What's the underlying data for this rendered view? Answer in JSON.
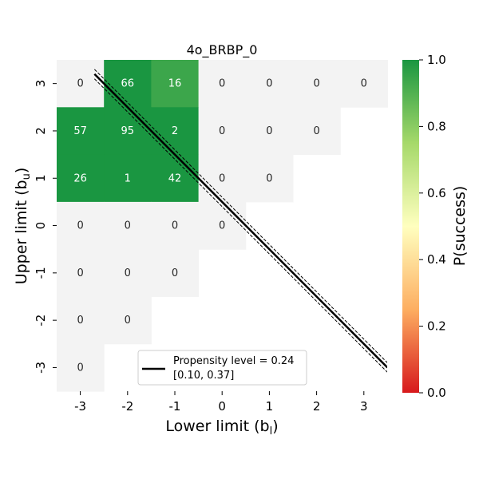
{
  "chart_data": {
    "type": "heatmap",
    "title": "4o_BRBP_0",
    "xlabel": "Lower limit (b",
    "xlabel_sub": "l",
    "ylabel": "Upper limit (b",
    "ylabel_sub": "u",
    "x_categories": [
      "-3",
      "-2",
      "-1",
      "0",
      "1",
      "2",
      "3"
    ],
    "y_categories": [
      "3",
      "2",
      "1",
      "0",
      "-1",
      "-2",
      "-3"
    ],
    "cells": [
      {
        "x": "-3",
        "y": "3",
        "count": "0",
        "p": null
      },
      {
        "x": "-2",
        "y": "3",
        "count": "66",
        "p": 1.0
      },
      {
        "x": "-1",
        "y": "3",
        "count": "16",
        "p": 0.94
      },
      {
        "x": "0",
        "y": "3",
        "count": "0",
        "p": null
      },
      {
        "x": "1",
        "y": "3",
        "count": "0",
        "p": null
      },
      {
        "x": "2",
        "y": "3",
        "count": "0",
        "p": null
      },
      {
        "x": "3",
        "y": "3",
        "count": "0",
        "p": null
      },
      {
        "x": "-3",
        "y": "2",
        "count": "57",
        "p": 1.0
      },
      {
        "x": "-2",
        "y": "2",
        "count": "95",
        "p": 1.0
      },
      {
        "x": "-1",
        "y": "2",
        "count": "2",
        "p": 1.0
      },
      {
        "x": "0",
        "y": "2",
        "count": "0",
        "p": null
      },
      {
        "x": "1",
        "y": "2",
        "count": "0",
        "p": null
      },
      {
        "x": "2",
        "y": "2",
        "count": "0",
        "p": null
      },
      {
        "x": "-3",
        "y": "1",
        "count": "26",
        "p": 1.0
      },
      {
        "x": "-2",
        "y": "1",
        "count": "1",
        "p": 1.0
      },
      {
        "x": "-1",
        "y": "1",
        "count": "42",
        "p": 1.0
      },
      {
        "x": "0",
        "y": "1",
        "count": "0",
        "p": null
      },
      {
        "x": "1",
        "y": "1",
        "count": "0",
        "p": null
      },
      {
        "x": "-3",
        "y": "0",
        "count": "0",
        "p": null
      },
      {
        "x": "-2",
        "y": "0",
        "count": "0",
        "p": null
      },
      {
        "x": "-1",
        "y": "0",
        "count": "0",
        "p": null
      },
      {
        "x": "0",
        "y": "0",
        "count": "0",
        "p": null
      },
      {
        "x": "-3",
        "y": "-1",
        "count": "0",
        "p": null
      },
      {
        "x": "-2",
        "y": "-1",
        "count": "0",
        "p": null
      },
      {
        "x": "-1",
        "y": "-1",
        "count": "0",
        "p": null
      },
      {
        "x": "-3",
        "y": "-2",
        "count": "0",
        "p": null
      },
      {
        "x": "-2",
        "y": "-2",
        "count": "0",
        "p": null
      },
      {
        "x": "-3",
        "y": "-3",
        "count": "0",
        "p": null
      }
    ],
    "propensity_line": {
      "label": "Propensity level = 0.24",
      "interval_label": "[0.10, 0.37]",
      "x": [
        -2.7,
        3.5
      ],
      "y": [
        3.2,
        -3.0
      ],
      "band_offset": 0.1
    },
    "colorbar": {
      "label": "P(success)",
      "ticks": [
        "0.0",
        "0.2",
        "0.4",
        "0.6",
        "0.8",
        "1.0"
      ],
      "range": [
        0,
        1
      ],
      "colormap": [
        "#d7191c",
        "#fdae61",
        "#ffffbf",
        "#a6d96a",
        "#1a9641"
      ]
    },
    "empty_cell_color": "#f3f3f3",
    "legend_position": "lower-center"
  }
}
